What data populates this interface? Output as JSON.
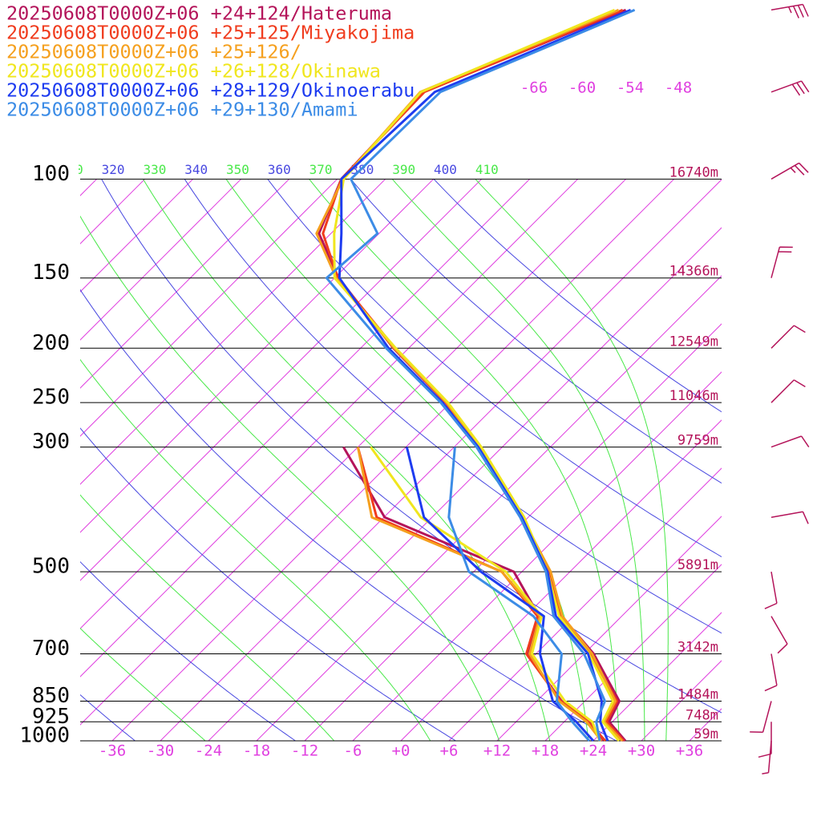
{
  "chart_data": {
    "type": "skew-t",
    "log_y": true,
    "skew_angle": 45,
    "xlim": [
      -40,
      40
    ],
    "ylim": [
      1000,
      48
    ],
    "yticks": [
      100,
      150,
      200,
      250,
      300,
      500,
      700,
      850,
      925,
      1000
    ],
    "height_labels": [
      "16740m",
      "14366m",
      "12549m",
      "11046m",
      "9759m",
      "5891m",
      "3142m",
      "1484m",
      "748m",
      "59m"
    ],
    "xticks": [
      -36,
      -30,
      -24,
      -18,
      -12,
      -6,
      {
        "value": 0,
        "label": "+0"
      },
      {
        "value": 6,
        "label": "+6"
      },
      {
        "value": 12,
        "label": "+12"
      },
      {
        "value": 18,
        "label": "+18"
      },
      {
        "value": 24,
        "label": "+24"
      },
      {
        "value": 30,
        "label": "+30"
      },
      {
        "value": 36,
        "label": "+36"
      }
    ],
    "isotherms": [
      -108,
      -102,
      -96,
      -90,
      -84,
      -78,
      -72,
      -66,
      -60,
      -54,
      -48,
      -42,
      -36,
      -30,
      -24,
      -18,
      -12,
      -6,
      0,
      6,
      12,
      18,
      24,
      30,
      36
    ],
    "isotherm_labels": [
      -66,
      -60,
      -54,
      -48
    ],
    "isotherm_color": "#e040e0",
    "dry_adiabats": [
      240,
      260,
      280,
      300,
      320,
      340,
      360,
      380,
      400
    ],
    "dry_adiabat_color": "#4848e0",
    "moist_adiabats": [
      250,
      270,
      290,
      310,
      330,
      350,
      370,
      390,
      410
    ],
    "moist_adiabat_color": "#48e848",
    "pressure_levels": [
      1000,
      925,
      850,
      700,
      600,
      500,
      400,
      300,
      250,
      200,
      150,
      125,
      100,
      70,
      50
    ],
    "series": [
      {
        "name": "20250608T0000Z+06 +24+124/Hateruma",
        "color": "#b4145a",
        "temperature": [
          28.0,
          23.6,
          22.3,
          13.2,
          4.5,
          -2.6,
          -12.9,
          -26.9,
          -36.6,
          -49.9,
          -65.5,
          -73.5,
          -77.5,
          -78.2,
          -63.1
        ],
        "dewpoint": [
          25.2,
          21.1,
          15.1,
          4.9,
          1.7,
          -7.0,
          -29.9,
          -43.8,
          null,
          null,
          null,
          null,
          null,
          null,
          null
        ]
      },
      {
        "name": "20250608T0000Z+06 +25+125/Miyakojima",
        "color": "#f03c1e",
        "temperature": [
          27.8,
          23.3,
          22.0,
          12.8,
          4.3,
          -2.5,
          -12.7,
          -26.8,
          -36.4,
          -49.7,
          -65.6,
          -73.0,
          -77.5,
          -78.0,
          -63.5
        ],
        "dewpoint": [
          25.5,
          21.0,
          15.0,
          4.8,
          1.5,
          -8.5,
          -30.9,
          -42.0,
          null,
          null,
          null,
          null,
          null,
          null,
          null
        ]
      },
      {
        "name": "20250608T0000Z+06 +25+126/",
        "color": "#f5a01e",
        "temperature": [
          27.6,
          23.0,
          21.8,
          13.0,
          4.6,
          -2.4,
          -12.8,
          -26.8,
          -36.5,
          -49.8,
          -65.8,
          -73.8,
          -77.3,
          -78.5,
          -64.0
        ],
        "dewpoint": [
          25.0,
          20.8,
          14.8,
          5.2,
          1.8,
          -8.5,
          -31.5,
          -42.0,
          null,
          null,
          null,
          null,
          null,
          null,
          null
        ]
      },
      {
        "name": "20250608T0000Z+06 +26+128/Okinawa",
        "color": "#f0e61e",
        "temperature": [
          27.2,
          22.8,
          21.5,
          12.6,
          4.2,
          -2.8,
          -12.5,
          -26.6,
          -36.3,
          -49.6,
          -66.0,
          -71.6,
          -77.2,
          -78.4,
          -64.5
        ],
        "dewpoint": [
          24.8,
          21.5,
          15.5,
          5.5,
          2.0,
          -8.0,
          -25.4,
          -40.4,
          null,
          null,
          null,
          null,
          null,
          null,
          null
        ]
      },
      {
        "name": "20250608T0000Z+06 +28+129/Okinoerabu",
        "color": "#1e3cf0",
        "temperature": [
          25.8,
          22.5,
          20.1,
          12.5,
          3.8,
          -2.8,
          -12.8,
          -27.0,
          -37.0,
          -50.5,
          -65.4,
          -70.7,
          -77.5,
          -76.7,
          -62.5
        ],
        "dewpoint": [
          24.0,
          19.5,
          14.0,
          6.5,
          2.3,
          -11.1,
          -25.0,
          -35.9,
          null,
          null,
          null,
          null,
          null,
          null,
          null
        ]
      },
      {
        "name": "20250608T0000Z+06 +29+130/Amami",
        "color": "#3c8ce6",
        "temperature": [
          24.8,
          22.0,
          20.5,
          12.0,
          3.5,
          -3.0,
          -13.0,
          -27.2,
          -37.2,
          -50.8,
          -67.0,
          -66.2,
          -76.3,
          -76.0,
          -62.0
        ],
        "dewpoint": [
          23.5,
          19.0,
          14.5,
          9.2,
          1.0,
          -12.6,
          -21.9,
          -29.9,
          null,
          null,
          null,
          null,
          null,
          null,
          null
        ]
      }
    ],
    "wind_color": "#b4145a",
    "wind_pressure": [
      50,
      70,
      100,
      150,
      200,
      250,
      300,
      400,
      500,
      600,
      700,
      850,
      925,
      1000
    ],
    "wind_direction": [
      80,
      70,
      60,
      15,
      45,
      45,
      70,
      80,
      170,
      150,
      170,
      195,
      180,
      185
    ],
    "wind_speed": [
      35,
      30,
      25,
      20,
      10,
      10,
      10,
      10,
      10,
      10,
      10,
      10,
      10,
      5
    ]
  }
}
